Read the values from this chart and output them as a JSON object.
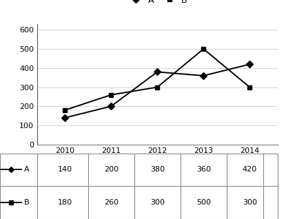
{
  "years": [
    2010,
    2011,
    2012,
    2013,
    2014
  ],
  "series_A": [
    140,
    200,
    380,
    360,
    420
  ],
  "series_B": [
    180,
    260,
    300,
    500,
    300
  ],
  "line_color": "#000000",
  "marker_A": "D",
  "marker_B": "s",
  "legend_labels": [
    "A",
    "B"
  ],
  "yticks": [
    0,
    100,
    200,
    300,
    400,
    500,
    600
  ],
  "ylim": [
    0,
    630
  ],
  "table_header": [
    "2010",
    "2011",
    "2012",
    "2013",
    "2014"
  ],
  "table_row_A_label": "A",
  "table_row_A_vals": [
    "140",
    "200",
    "380",
    "360",
    "420"
  ],
  "table_row_B_label": "B",
  "table_row_B_vals": [
    "180",
    "260",
    "300",
    "500",
    "300"
  ],
  "bg_color": "#ffffff",
  "figsize": [
    4.15,
    3.18
  ],
  "dpi": 100
}
